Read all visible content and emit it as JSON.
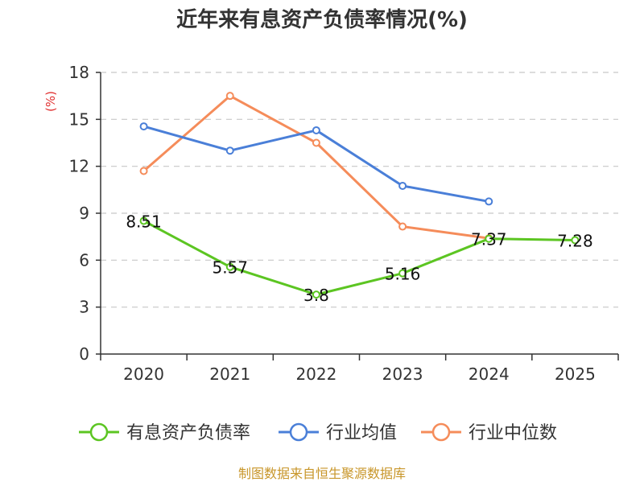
{
  "chart_data": {
    "type": "line",
    "title": "近年来有息资产负债率情况(%)",
    "ylabel": "(%)",
    "xlabel": "",
    "categories": [
      "2020",
      "2021",
      "2022",
      "2023",
      "2024",
      "2025"
    ],
    "ylim": [
      0,
      18
    ],
    "yticks": [
      0,
      3,
      6,
      9,
      12,
      15,
      18
    ],
    "grid": true,
    "legend_position": "bottom",
    "series": [
      {
        "name": "有息资产负债率",
        "color": "#5cc522",
        "values": [
          8.51,
          5.57,
          3.8,
          5.16,
          7.37,
          7.28
        ],
        "labels": [
          "8.51",
          "5.57",
          "3.8",
          "5.16",
          "7.37",
          "7.28"
        ]
      },
      {
        "name": "行业均值",
        "color": "#4a7fd8",
        "values": [
          14.55,
          13.0,
          14.3,
          10.75,
          9.75,
          null
        ]
      },
      {
        "name": "行业中位数",
        "color": "#f58c5a",
        "values": [
          11.7,
          16.5,
          13.5,
          8.15,
          7.4,
          null
        ]
      }
    ]
  },
  "footer": {
    "source": "制图数据来自恒生聚源数据库"
  }
}
